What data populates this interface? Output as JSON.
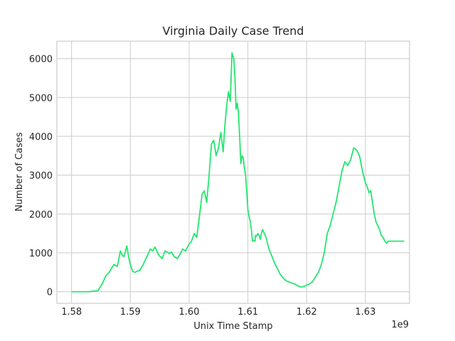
{
  "chart_data": {
    "type": "line",
    "title": "Virginia Daily Case Trend",
    "xlabel": "Unix Time Stamp",
    "ylabel": "Number of Cases",
    "x_offset_label": "1e9",
    "x_scale_exponent": 9,
    "xlim": [
      1.5775,
      1.6375
    ],
    "ylim": [
      -300,
      6450
    ],
    "xticks": [
      1.58,
      1.59,
      1.6,
      1.61,
      1.62,
      1.63
    ],
    "xtick_labels": [
      "1.58",
      "1.59",
      "1.60",
      "1.61",
      "1.62",
      "1.63"
    ],
    "yticks": [
      0,
      1000,
      2000,
      3000,
      4000,
      5000,
      6000
    ],
    "ytick_labels": [
      "0",
      "1000",
      "2000",
      "3000",
      "4000",
      "5000",
      "6000"
    ],
    "grid": true,
    "legend": "none",
    "series": [
      {
        "color": "#22e66e",
        "x": [
          1.58,
          1.583,
          1.5845,
          1.5852,
          1.5858,
          1.5864,
          1.5872,
          1.5878,
          1.5883,
          1.5886,
          1.5889,
          1.5891,
          1.5894,
          1.5897,
          1.59,
          1.5904,
          1.5908,
          1.5912,
          1.5916,
          1.5922,
          1.5928,
          1.5931,
          1.5934,
          1.5938,
          1.5942,
          1.5948,
          1.5954,
          1.5959,
          1.5963,
          1.5966,
          1.597,
          1.5975,
          1.598,
          1.5984,
          1.5989,
          1.5994,
          1.5999,
          1.6004,
          1.6009,
          1.6013,
          1.6018,
          1.6022,
          1.6026,
          1.603,
          1.6034,
          1.6038,
          1.6042,
          1.6046,
          1.605,
          1.6054,
          1.6058,
          1.6061,
          1.6064,
          1.6067,
          1.607,
          1.6073,
          1.6076,
          1.6078,
          1.608,
          1.6082,
          1.6084,
          1.6086,
          1.6088,
          1.609,
          1.6092,
          1.6094,
          1.6096,
          1.6098,
          1.61,
          1.6102,
          1.6104,
          1.6106,
          1.6107,
          1.6108,
          1.611,
          1.6112,
          1.6113,
          1.6115,
          1.6117,
          1.6119,
          1.6121,
          1.6123,
          1.6125,
          1.6128,
          1.6131,
          1.6134,
          1.6137,
          1.614,
          1.6145,
          1.615,
          1.6155,
          1.616,
          1.6165,
          1.617,
          1.6175,
          1.618,
          1.6185,
          1.619,
          1.6195,
          1.62,
          1.6205,
          1.621,
          1.6215,
          1.622,
          1.6225,
          1.623,
          1.6235,
          1.624,
          1.6245,
          1.625,
          1.6255,
          1.626,
          1.6265,
          1.627,
          1.6275,
          1.628,
          1.6285,
          1.629,
          1.6295,
          1.63,
          1.6303,
          1.6306,
          1.6309,
          1.6312,
          1.6315,
          1.6318,
          1.6321,
          1.6324,
          1.6327,
          1.633,
          1.6333,
          1.6336,
          1.6339,
          1.6342,
          1.6345,
          1.6348,
          1.6351,
          1.6354,
          1.6357,
          1.636,
          1.6363,
          1.6366
        ],
        "y": [
          0,
          0,
          30,
          200,
          400,
          500,
          700,
          650,
          1050,
          950,
          900,
          1000,
          1180,
          900,
          700,
          520,
          500,
          530,
          550,
          700,
          900,
          1000,
          1100,
          1050,
          1150,
          950,
          850,
          1050,
          1020,
          980,
          1020,
          900,
          850,
          950,
          1100,
          1050,
          1200,
          1300,
          1500,
          1400,
          2000,
          2500,
          2600,
          2300,
          3000,
          3800,
          3900,
          3500,
          3700,
          4100,
          3600,
          4300,
          4800,
          5150,
          4900,
          6150,
          6000,
          5500,
          4700,
          4850,
          4600,
          4000,
          3300,
          3500,
          3450,
          3200,
          3000,
          2600,
          2100,
          1950,
          1800,
          1600,
          1400,
          1300,
          1320,
          1300,
          1450,
          1430,
          1500,
          1450,
          1350,
          1500,
          1600,
          1500,
          1400,
          1200,
          1050,
          950,
          750,
          600,
          450,
          350,
          280,
          250,
          220,
          200,
          150,
          120,
          130,
          170,
          200,
          260,
          380,
          500,
          700,
          1000,
          1500,
          1700,
          2000,
          2300,
          2700,
          3100,
          3350,
          3250,
          3400,
          3700,
          3650,
          3500,
          3100,
          2800,
          2700,
          2550,
          2600,
          2300,
          2000,
          1800,
          1700,
          1600,
          1450,
          1400,
          1300,
          1250,
          1300,
          1300,
          1300,
          1300,
          1300,
          1300,
          1300,
          1300,
          1300,
          1300
        ]
      }
    ]
  }
}
